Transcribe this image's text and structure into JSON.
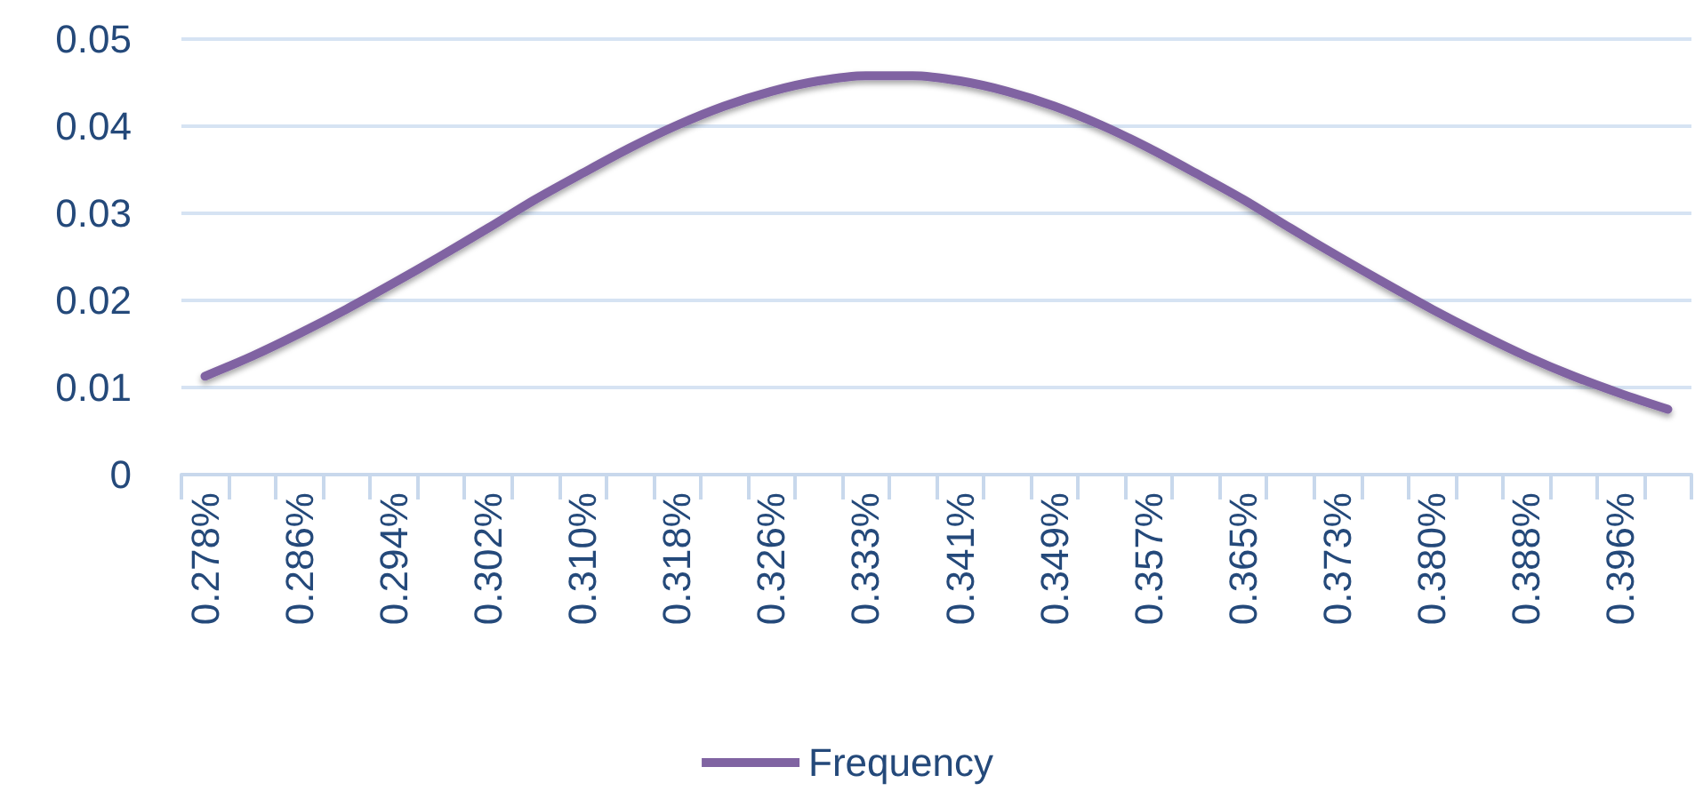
{
  "chart_data": {
    "type": "line",
    "categories": [
      "0.278%",
      null,
      "0.286%",
      null,
      "0.294%",
      null,
      "0.302%",
      null,
      "0.310%",
      null,
      "0.318%",
      null,
      "0.326%",
      null,
      "0.333%",
      null,
      "0.341%",
      null,
      "0.349%",
      null,
      "0.357%",
      null,
      "0.365%",
      null,
      "0.373%",
      null,
      "0.380%",
      null,
      "0.388%",
      null,
      "0.396%",
      null
    ],
    "series": [
      {
        "name": "Frequency",
        "color": "#8064a2",
        "values": [
          0.0113,
          0.0136,
          0.0162,
          0.019,
          0.022,
          0.0251,
          0.0283,
          0.0316,
          0.0346,
          0.0375,
          0.0401,
          0.0423,
          0.044,
          0.0452,
          0.0458,
          0.0458,
          0.0452,
          0.044,
          0.0423,
          0.0401,
          0.0375,
          0.0346,
          0.0316,
          0.0283,
          0.0251,
          0.022,
          0.019,
          0.0162,
          0.0136,
          0.0113,
          0.0093,
          0.0075
        ]
      }
    ],
    "ylim": [
      0,
      0.05
    ],
    "yticks": [
      0,
      0.01,
      0.02,
      0.03,
      0.04,
      0.05
    ],
    "grid": "y",
    "legend": "bottom",
    "marker": "none",
    "line_style": "solid"
  }
}
